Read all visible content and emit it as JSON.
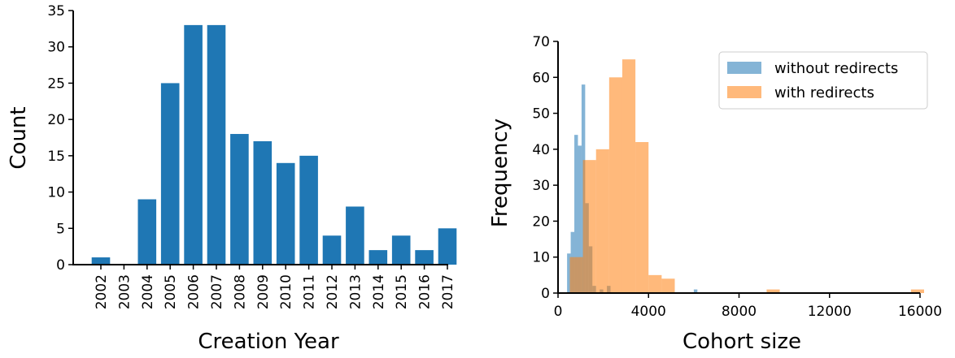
{
  "chart_data": [
    {
      "type": "bar",
      "categories": [
        "2002",
        "2003",
        "2004",
        "2005",
        "2006",
        "2007",
        "2008",
        "2009",
        "2010",
        "2011",
        "2012",
        "2013",
        "2014",
        "2015",
        "2016",
        "2017"
      ],
      "values": [
        1,
        0,
        9,
        25,
        33,
        33,
        18,
        17,
        14,
        15,
        4,
        8,
        2,
        4,
        2,
        5
      ],
      "xlabel": "Creation Year",
      "ylabel": "Count",
      "ylim": [
        0,
        35
      ],
      "yticks": [
        0,
        5,
        10,
        15,
        20,
        25,
        30,
        35
      ],
      "color": "#1f77b4",
      "grid": false
    },
    {
      "type": "histogram",
      "xlabel": "Cohort size",
      "ylabel": "Frequency",
      "xlim": [
        0,
        16000
      ],
      "ylim": [
        0,
        70
      ],
      "xticks": [
        0,
        4000,
        8000,
        12000,
        16000
      ],
      "yticks": [
        0,
        10,
        20,
        30,
        40,
        50,
        60,
        70
      ],
      "legend_position": "top-right",
      "grid": false,
      "series": [
        {
          "name": "without redirects",
          "color": "#1f77b4",
          "opacity": 0.55,
          "bin_edges": [
            400,
            560,
            720,
            880,
            1040,
            1200,
            1360,
            1520,
            1680,
            1840,
            2000,
            2160,
            2320,
            2480,
            2640,
            2800,
            2960,
            3120,
            3280,
            3440,
            3600,
            3760,
            3920,
            4080,
            4240,
            4400,
            4560,
            4720,
            4880,
            5040,
            5200,
            5360,
            5520,
            5680,
            5840,
            6000,
            6160
          ],
          "counts": [
            11,
            17,
            44,
            41,
            58,
            25,
            13,
            2,
            0,
            1,
            0,
            2,
            0,
            0,
            0,
            0,
            0,
            0,
            0,
            0,
            0,
            0,
            0,
            0,
            0,
            0,
            0,
            0,
            0,
            0,
            0,
            0,
            0,
            0,
            0,
            1
          ]
        },
        {
          "name": "with redirects",
          "color": "#ff7f0e",
          "opacity": 0.55,
          "bin_edges": [
            520,
            1100,
            1680,
            2260,
            2840,
            3420,
            4000,
            4580,
            5160,
            5740,
            6320,
            6900,
            7480,
            8060,
            8640,
            9220,
            9800,
            10380,
            10960,
            11540,
            12120,
            12700,
            13280,
            13860,
            14440,
            15020,
            15600,
            16180
          ],
          "counts": [
            10,
            37,
            40,
            60,
            65,
            42,
            5,
            4,
            0,
            0,
            0,
            0,
            0,
            0,
            0,
            1,
            0,
            0,
            0,
            0,
            0,
            0,
            0,
            0,
            0,
            0,
            1
          ]
        }
      ]
    }
  ]
}
